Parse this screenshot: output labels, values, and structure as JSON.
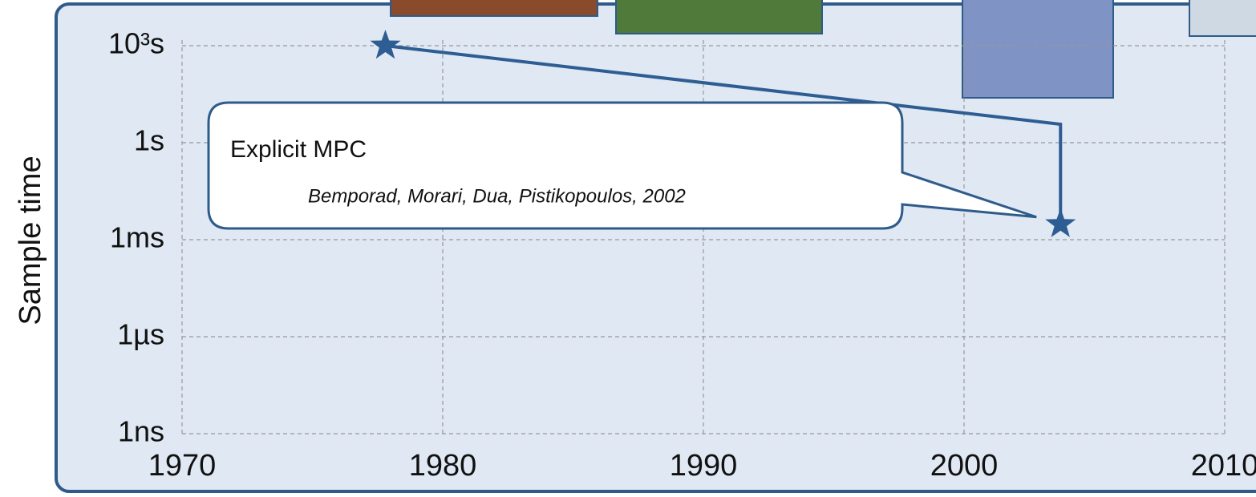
{
  "chart_data": {
    "type": "scatter",
    "y_label": "Sample time",
    "x": [
      1977.8,
      2003.7
    ],
    "values": [
      1000,
      0.003
    ],
    "color": "#2d5d92",
    "xlim": [
      1970,
      2010
    ],
    "xticks": [
      1970,
      1980,
      1990,
      2000,
      2010
    ],
    "ylim": [
      1e-09,
      1000
    ],
    "log_y": true,
    "yticks": [
      {
        "value": 1000,
        "label": "10³s"
      },
      {
        "value": 1,
        "label": "1s"
      },
      {
        "value": 0.001,
        "label": "1ms"
      },
      {
        "value": 1e-06,
        "label": "1µs"
      },
      {
        "value": 1e-09,
        "label": "1ns"
      }
    ],
    "grid": true,
    "annotation": {
      "title": "Explicit MPC",
      "subtitle": "Bemporad, Morari, Dua, Pistikopoulos, 2002"
    }
  }
}
